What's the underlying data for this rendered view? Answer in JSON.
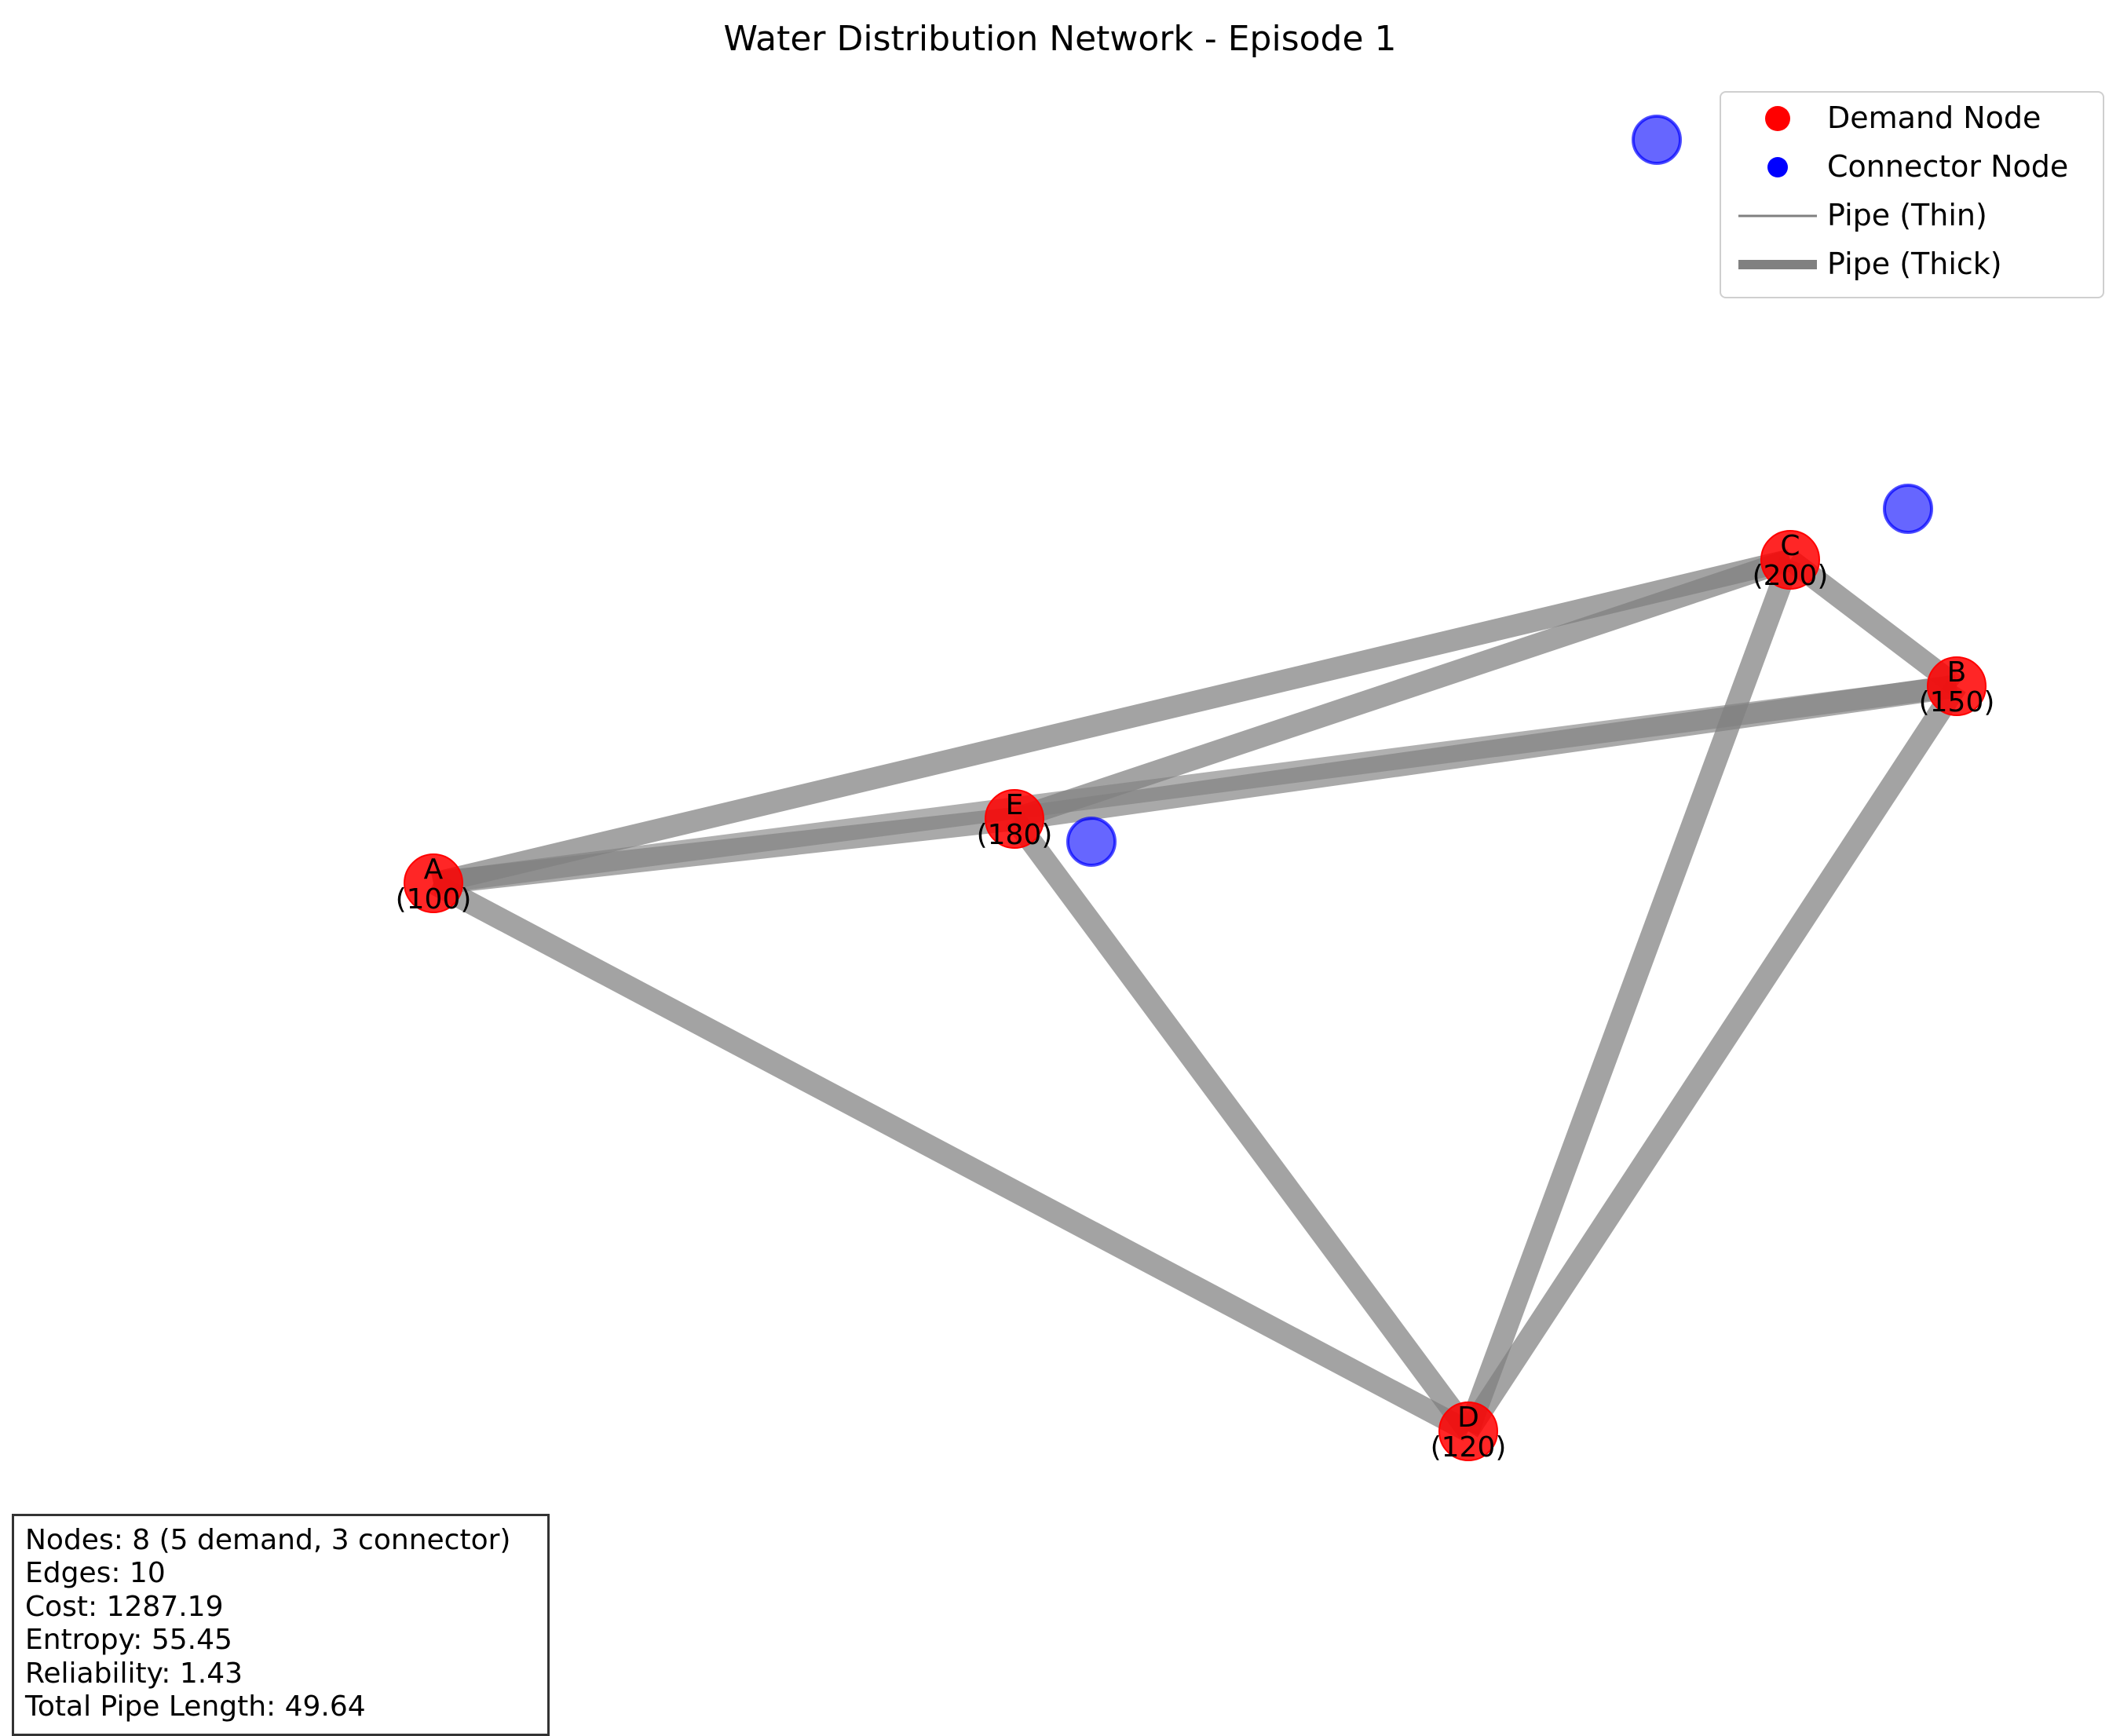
{
  "title": "Water Distribution Network - Episode 1",
  "legend": {
    "demand_label": "Demand Node",
    "connector_label": "Connector Node",
    "thin_label": "Pipe (Thin)",
    "thick_label": "Pipe (Thick)"
  },
  "colors": {
    "demand": "#ff0000",
    "connector": "#0000ff",
    "pipe": "#808080"
  },
  "stats": {
    "nodes": "Nodes: 8 (5 demand, 3 connector)",
    "edges": "Edges: 10",
    "cost": "Cost: 1287.19",
    "entropy": "Entropy: 55.45",
    "reliability": "Reliability: 1.43",
    "length": "Total Pipe Length: 49.64"
  },
  "network": {
    "demand_nodes": [
      {
        "id": "A",
        "demand": "(100)"
      },
      {
        "id": "B",
        "demand": "(150)"
      },
      {
        "id": "C",
        "demand": "(200)"
      },
      {
        "id": "D",
        "demand": "(120)"
      },
      {
        "id": "E",
        "demand": "(180)"
      }
    ],
    "connector_nodes": [
      "c1",
      "c2",
      "c3"
    ],
    "pipes": [
      {
        "from": "A",
        "to": "E",
        "size": "thick"
      },
      {
        "from": "E",
        "to": "B",
        "size": "thick"
      },
      {
        "from": "A",
        "to": "B",
        "size": "thick"
      },
      {
        "from": "A",
        "to": "C",
        "size": "thick"
      },
      {
        "from": "A",
        "to": "D",
        "size": "thick"
      },
      {
        "from": "E",
        "to": "C",
        "size": "thick"
      },
      {
        "from": "E",
        "to": "D",
        "size": "thick"
      },
      {
        "from": "C",
        "to": "B",
        "size": "thick"
      },
      {
        "from": "C",
        "to": "D",
        "size": "thick"
      },
      {
        "from": "B",
        "to": "D",
        "size": "thick"
      }
    ]
  }
}
